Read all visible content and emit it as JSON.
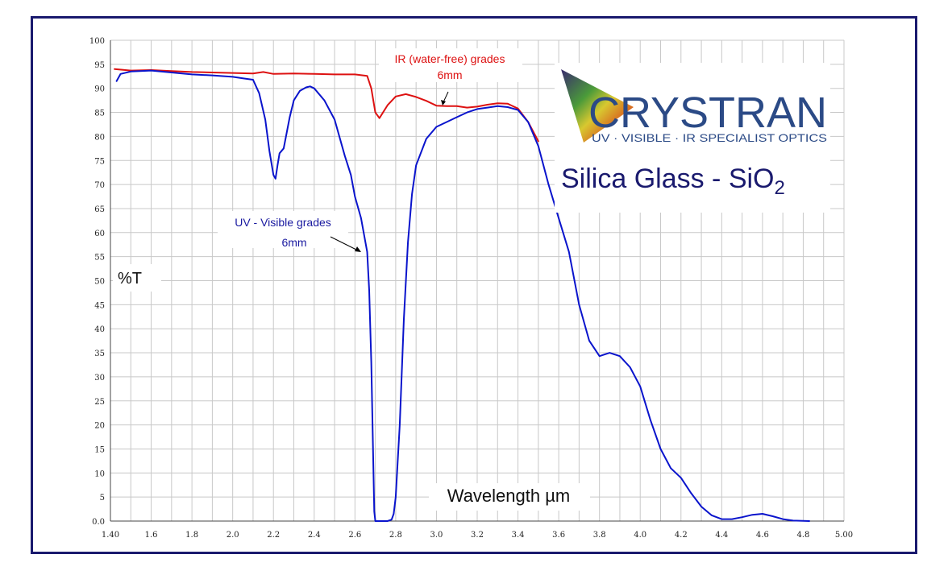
{
  "chart_data": {
    "type": "line",
    "title": "Silica Glass - SiO",
    "title_subscript": "2",
    "xlabel": "Wavelength µm",
    "ylabel": "%T",
    "xlim": [
      1.4,
      5.0
    ],
    "ylim": [
      0,
      100
    ],
    "grid": true,
    "x_ticks": [
      "1.40",
      "1.6",
      "1.8",
      "2.0",
      "2.2",
      "2.4",
      "2.6",
      "2.8",
      "3.0",
      "3.2",
      "3.4",
      "3.6",
      "3.8",
      "4.0",
      "4.2",
      "4.4",
      "4.6",
      "4.8",
      "5.00"
    ],
    "x_tick_values": [
      1.4,
      1.6,
      1.8,
      2.0,
      2.2,
      2.4,
      2.6,
      2.8,
      3.0,
      3.2,
      3.4,
      3.6,
      3.8,
      4.0,
      4.2,
      4.4,
      4.6,
      4.8,
      5.0
    ],
    "y_ticks": [
      "0.0",
      "5",
      "10",
      "15",
      "20",
      "25",
      "30",
      "35",
      "40",
      "45",
      "50",
      "55",
      "60",
      "65",
      "70",
      "75",
      "80",
      "85",
      "90",
      "95",
      "100"
    ],
    "y_tick_values": [
      0,
      5,
      10,
      15,
      20,
      25,
      30,
      35,
      40,
      45,
      50,
      55,
      60,
      65,
      70,
      75,
      80,
      85,
      90,
      95,
      100
    ],
    "series": [
      {
        "color": "#dd1111",
        "x": [
          1.42,
          1.5,
          1.6,
          1.7,
          1.8,
          1.9,
          2.0,
          2.1,
          2.15,
          2.2,
          2.3,
          2.4,
          2.5,
          2.6,
          2.66,
          2.68,
          2.7,
          2.72,
          2.76,
          2.8,
          2.85,
          2.9,
          2.95,
          3.0,
          3.05,
          3.1,
          3.15,
          3.2,
          3.25,
          3.3,
          3.35,
          3.4,
          3.45,
          3.5
        ],
        "y": [
          94.0,
          93.7,
          93.8,
          93.6,
          93.4,
          93.3,
          93.2,
          93.1,
          93.4,
          93.0,
          93.1,
          93.0,
          92.9,
          92.9,
          92.6,
          90.0,
          85.0,
          83.8,
          86.5,
          88.3,
          88.8,
          88.2,
          87.4,
          86.4,
          86.3,
          86.3,
          86.0,
          86.2,
          86.6,
          86.9,
          86.8,
          85.8,
          83.0,
          79.0
        ]
      },
      {
        "color": "#0a14cc",
        "x": [
          1.43,
          1.45,
          1.5,
          1.6,
          1.7,
          1.8,
          1.9,
          2.0,
          2.05,
          2.1,
          2.13,
          2.16,
          2.18,
          2.2,
          2.21,
          2.22,
          2.23,
          2.25,
          2.28,
          2.3,
          2.33,
          2.36,
          2.38,
          2.4,
          2.45,
          2.5,
          2.55,
          2.58,
          2.6,
          2.63,
          2.66,
          2.67,
          2.68,
          2.69,
          2.695,
          2.7,
          2.71,
          2.74,
          2.76,
          2.78,
          2.79,
          2.8,
          2.82,
          2.84,
          2.86,
          2.88,
          2.9,
          2.95,
          3.0,
          3.05,
          3.1,
          3.15,
          3.2,
          3.25,
          3.3,
          3.35,
          3.4,
          3.45,
          3.5,
          3.55,
          3.6,
          3.65,
          3.7,
          3.75,
          3.8,
          3.85,
          3.9,
          3.95,
          4.0,
          4.05,
          4.1,
          4.15,
          4.2,
          4.25,
          4.3,
          4.35,
          4.4,
          4.45,
          4.5,
          4.55,
          4.6,
          4.65,
          4.7,
          4.75,
          4.8,
          4.83
        ],
        "y": [
          91.5,
          93.0,
          93.5,
          93.7,
          93.3,
          92.9,
          92.7,
          92.4,
          92.1,
          91.8,
          89.0,
          83.5,
          77.0,
          72.0,
          71.2,
          74.0,
          76.5,
          77.5,
          84.0,
          87.5,
          89.5,
          90.2,
          90.4,
          90.0,
          87.5,
          83.5,
          76.0,
          72.0,
          67.5,
          63.0,
          56.0,
          48.0,
          33.0,
          12.0,
          2.0,
          0.0,
          0.0,
          0.0,
          0.0,
          0.3,
          1.5,
          5.0,
          20.0,
          42.0,
          58.0,
          68.0,
          74.0,
          79.5,
          82.0,
          83.0,
          84.0,
          85.0,
          85.7,
          86.0,
          86.3,
          86.1,
          85.5,
          83.0,
          78.0,
          70.0,
          63.0,
          56.0,
          45.0,
          37.5,
          34.3,
          35.0,
          34.3,
          32.0,
          28.0,
          21.0,
          15.0,
          11.0,
          9.0,
          5.8,
          3.0,
          1.2,
          0.4,
          0.4,
          0.8,
          1.3,
          1.5,
          1.0,
          0.4,
          0.1,
          0.05,
          0.0
        ]
      }
    ],
    "annotations": [
      {
        "lines": [
          "IR (water-free) grades",
          "6mm"
        ],
        "color": "#dd1111"
      },
      {
        "lines": [
          "UV - Visible grades",
          "6mm"
        ],
        "color": "#1a1aa0"
      }
    ]
  },
  "logo": {
    "name": "CRYSTRAN",
    "tagline": "UV · VISIBLE · IR SPECIALIST OPTICS",
    "name_color": "#2b4a86",
    "tagline_color": "#2b4a86"
  },
  "colors": {
    "frame": "#1a1a6e",
    "title": "#1a1a6e"
  }
}
